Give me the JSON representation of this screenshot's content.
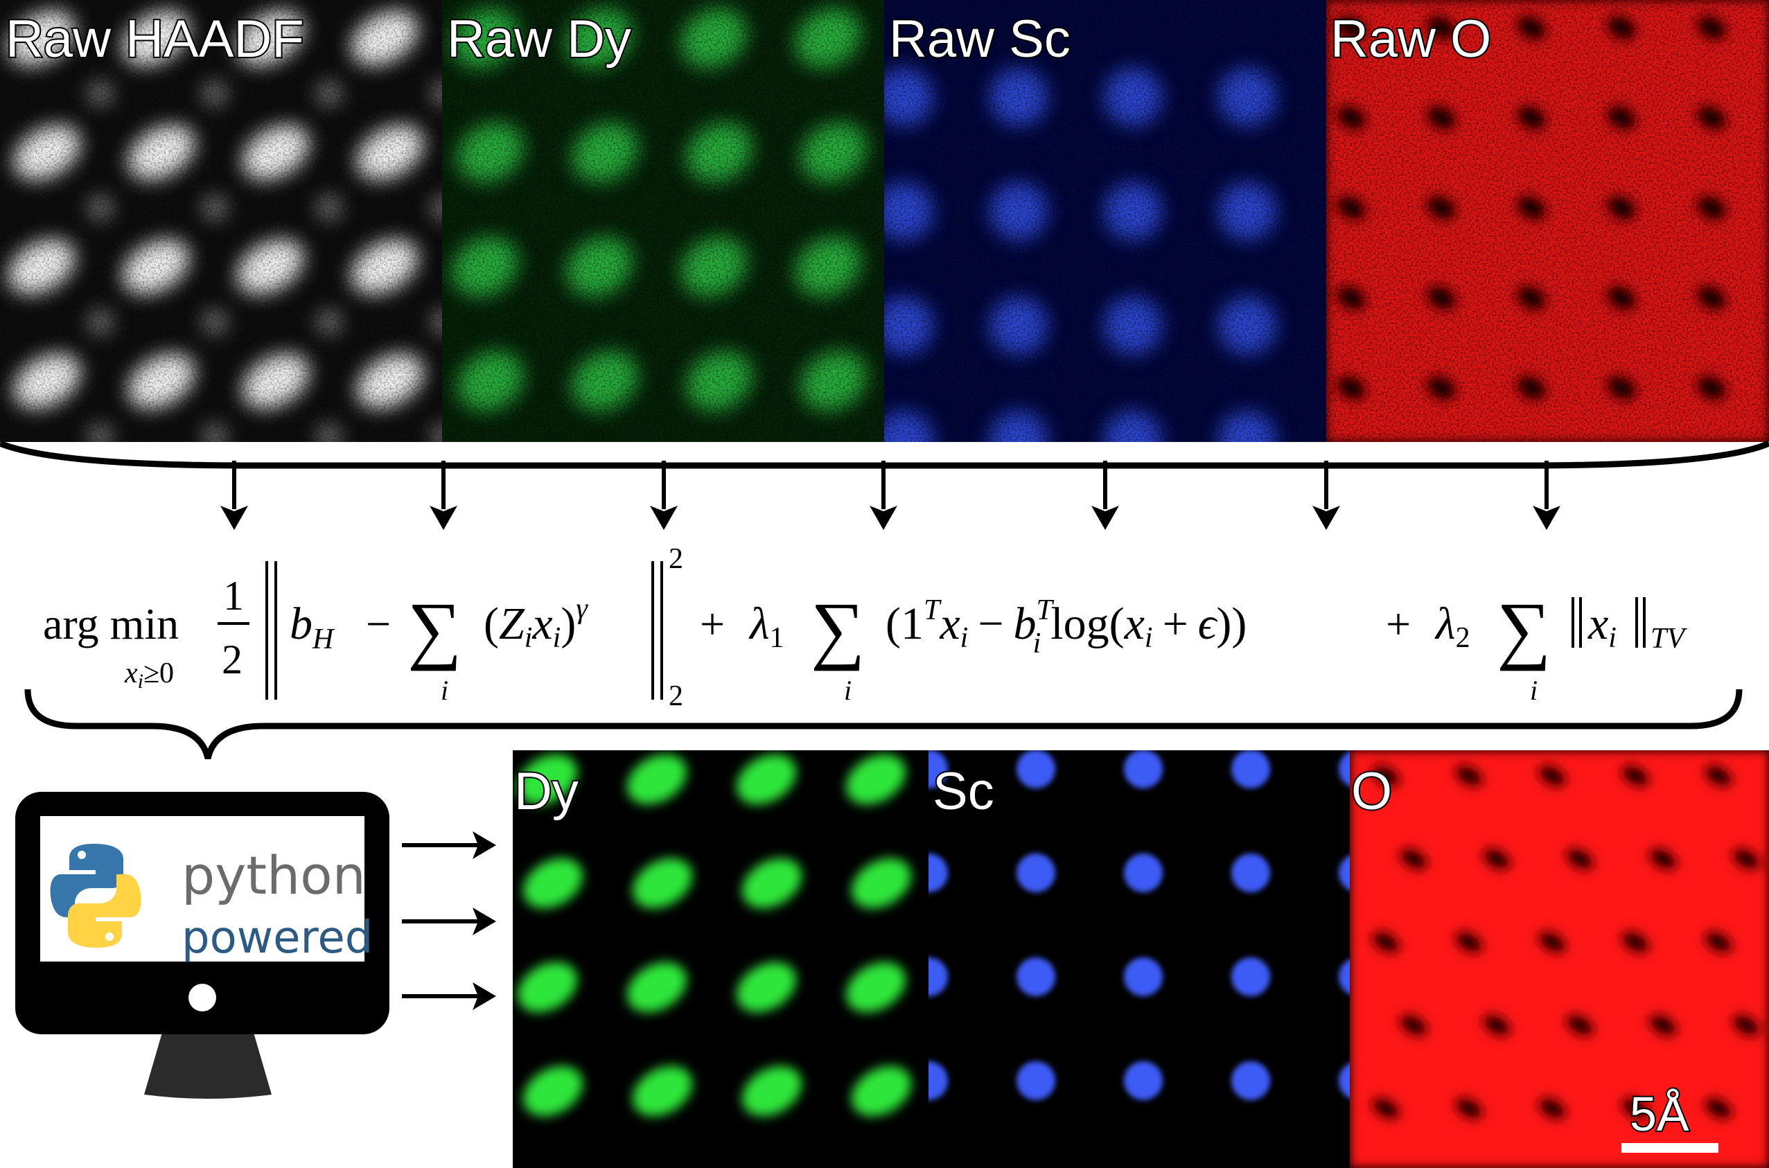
{
  "raw_panels": [
    {
      "label": "Raw HAADF",
      "color": "#ffffff",
      "background": "#0d0d0d"
    },
    {
      "label": "Raw Dy",
      "color": "#2fd14a",
      "background": "#062008"
    },
    {
      "label": "Raw Sc",
      "color": "#3a5cff",
      "background": "#02063a"
    },
    {
      "label": "Raw O",
      "color": "#ff1a1a",
      "background": "#1a0000"
    }
  ],
  "equation": {
    "text": "arg min_{x_i ≥ 0} 1/2 ‖ b_H − Σ_i (Z_i x_i)^γ ‖_2^2 + λ_1 Σ_i (1^T x_i − b_i^T log(x_i + ε)) + λ_2 Σ_i ‖x_i‖_TV",
    "argmin": "arg min",
    "argmin_sub": "x",
    "argmin_sub_i": "i",
    "argmin_cond": "≥0",
    "half_num": "1",
    "half_den": "2",
    "sum_symbol": "∑",
    "sum_index": "i",
    "term_bH": "b",
    "term_bH_sub": "H",
    "minus": "−",
    "plus": "+",
    "paren_open": "(",
    "paren_close": ")",
    "Z": "Z",
    "x": "x",
    "gamma": "γ",
    "norm_sup": "2",
    "norm_sub": "2",
    "lambda": "λ",
    "lambda1_sub": "1",
    "lambda2_sub": "2",
    "one": "1",
    "T": "T",
    "b": "b",
    "log": "log",
    "epsilon": "ϵ",
    "tv": "TV"
  },
  "computer": {
    "line1": "python",
    "line2": "powered",
    "line1_color": "#6b6b6b",
    "line2_color": "#2b5b84"
  },
  "fused_panels": [
    {
      "label": "Dy",
      "color": "#2ee63a",
      "background": "#000000"
    },
    {
      "label": "Sc",
      "color": "#3d5cf5",
      "background": "#000000"
    },
    {
      "label": "O",
      "color": "#ff1414",
      "background": "#000000"
    }
  ],
  "scale_bar": {
    "label": "5Å"
  }
}
